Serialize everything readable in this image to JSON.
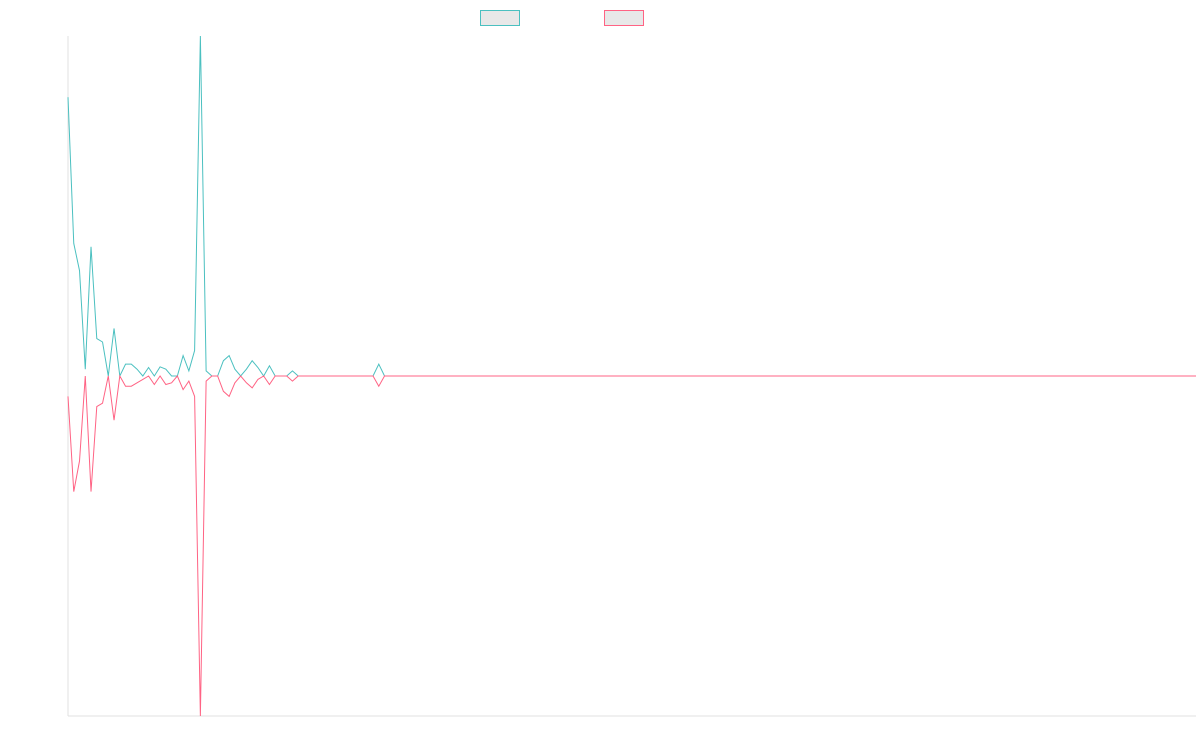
{
  "colors": {
    "series_a": "#4bc0c0",
    "series_b": "#ff6384",
    "legend_fill": "#e8e8e8",
    "axis": "#e0e0e0"
  },
  "chart_data": {
    "type": "line",
    "title": "",
    "xlabel": "",
    "ylabel": "",
    "grid": false,
    "legend_position": "top-center",
    "ylim": [
      -1,
      1
    ],
    "n_points": 197,
    "series": [
      {
        "name": "",
        "color": "#4bc0c0",
        "values": [
          0.82,
          0.39,
          0.31,
          0.02,
          0.38,
          0.11,
          0.1,
          0.0,
          0.14,
          0.0,
          0.035,
          0.035,
          0.02,
          0.0,
          0.025,
          0.0,
          0.027,
          0.02,
          0.0,
          0.0,
          0.06,
          0.015,
          0.075,
          1.0,
          0.015,
          0.0,
          0.0,
          0.045,
          0.06,
          0.02,
          0.0,
          0.02,
          0.045,
          0.025,
          0.0,
          0.03,
          0.0,
          0.0,
          0.0,
          0.015,
          0.0,
          0.0,
          0.0,
          0.0,
          0.0,
          0.0,
          0.0,
          0.0,
          0.0,
          0.0,
          0.0,
          0.0,
          0.0,
          0.0,
          0.035,
          0.0
        ]
      },
      {
        "name": "",
        "color": "#ff6384",
        "values": [
          -0.06,
          -0.34,
          -0.25,
          0.0,
          -0.34,
          -0.09,
          -0.08,
          0.0,
          -0.13,
          0.0,
          -0.03,
          -0.03,
          -0.02,
          -0.01,
          0.0,
          -0.025,
          0.0,
          -0.025,
          -0.02,
          0.0,
          -0.04,
          -0.015,
          -0.06,
          -1.0,
          -0.015,
          0.0,
          0.0,
          -0.045,
          -0.06,
          -0.02,
          0.0,
          -0.02,
          -0.035,
          -0.01,
          0.0,
          -0.025,
          0.0,
          0.0,
          0.0,
          -0.015,
          0.0,
          0.0,
          0.0,
          0.0,
          0.0,
          0.0,
          0.0,
          0.0,
          0.0,
          0.0,
          0.0,
          0.0,
          0.0,
          0.0,
          -0.03,
          0.0
        ]
      }
    ]
  }
}
